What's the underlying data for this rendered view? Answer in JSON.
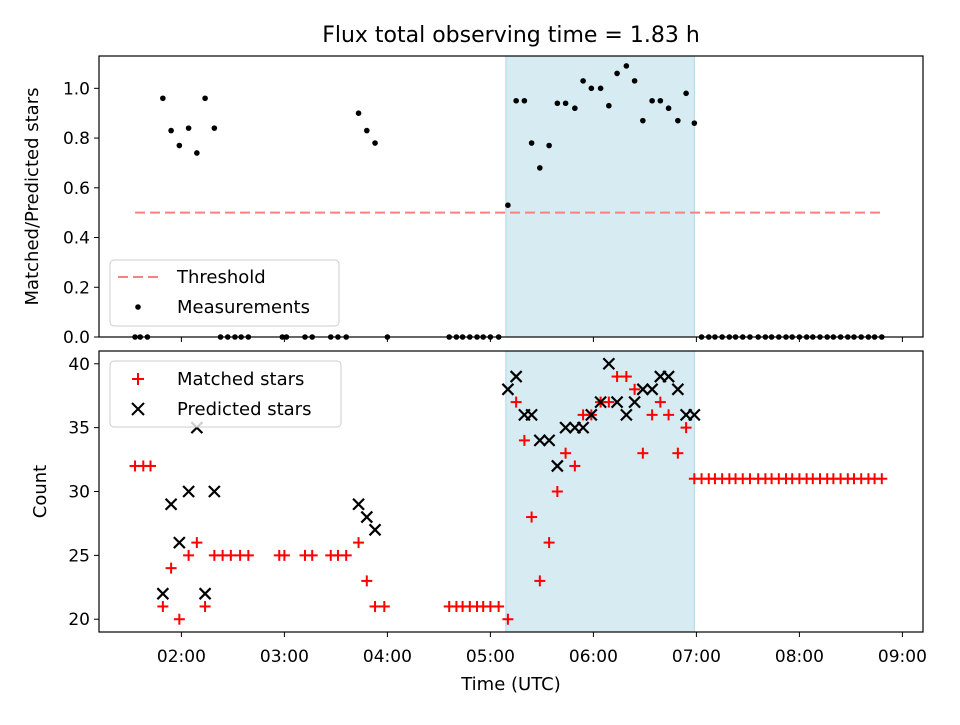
{
  "chart_data": [
    {
      "type": "scatter",
      "title": "Flux total observing time = 1.83 h",
      "ylabel": "Matched/Predicted stars",
      "xlabel": "",
      "xlim": [
        1.2,
        9.2
      ],
      "ylim": [
        0,
        1.13
      ],
      "y_ticks": [
        0.0,
        0.2,
        0.4,
        0.6,
        0.8,
        1.0
      ],
      "shaded_span": [
        5.15,
        6.98
      ],
      "legend_position": "lower-left",
      "threshold": {
        "name": "Threshold",
        "y": 0.5,
        "x_range": [
          1.55,
          8.83
        ],
        "color": "#ff7f7f",
        "style": "dashed"
      },
      "series": [
        {
          "name": "Measurements",
          "marker": "dot",
          "color": "#000000",
          "points": [
            [
              1.55,
              0
            ],
            [
              1.6,
              0
            ],
            [
              1.67,
              0
            ],
            [
              1.82,
              0.96
            ],
            [
              1.9,
              0.83
            ],
            [
              1.98,
              0.77
            ],
            [
              2.07,
              0.84
            ],
            [
              2.15,
              0.74
            ],
            [
              2.23,
              0.96
            ],
            [
              2.32,
              0.84
            ],
            [
              2.38,
              0
            ],
            [
              2.45,
              0
            ],
            [
              2.52,
              0
            ],
            [
              2.58,
              0
            ],
            [
              2.65,
              0
            ],
            [
              2.98,
              0
            ],
            [
              3.02,
              0
            ],
            [
              3.2,
              0
            ],
            [
              3.27,
              0
            ],
            [
              3.45,
              0
            ],
            [
              3.52,
              0
            ],
            [
              3.6,
              0
            ],
            [
              3.72,
              0.9
            ],
            [
              3.8,
              0.83
            ],
            [
              3.88,
              0.78
            ],
            [
              4.0,
              0
            ],
            [
              4.6,
              0
            ],
            [
              4.67,
              0
            ],
            [
              4.73,
              0
            ],
            [
              4.8,
              0
            ],
            [
              4.87,
              0
            ],
            [
              4.93,
              0
            ],
            [
              5.0,
              0
            ],
            [
              5.08,
              0
            ],
            [
              5.17,
              0.53
            ],
            [
              5.25,
              0.95
            ],
            [
              5.33,
              0.95
            ],
            [
              5.4,
              0.78
            ],
            [
              5.48,
              0.68
            ],
            [
              5.57,
              0.77
            ],
            [
              5.65,
              0.94
            ],
            [
              5.73,
              0.94
            ],
            [
              5.82,
              0.92
            ],
            [
              5.9,
              1.03
            ],
            [
              5.98,
              1.0
            ],
            [
              6.07,
              1.0
            ],
            [
              6.15,
              0.93
            ],
            [
              6.23,
              1.06
            ],
            [
              6.32,
              1.09
            ],
            [
              6.4,
              1.03
            ],
            [
              6.48,
              0.87
            ],
            [
              6.57,
              0.95
            ],
            [
              6.65,
              0.95
            ],
            [
              6.73,
              0.92
            ],
            [
              6.82,
              0.87
            ],
            [
              6.9,
              0.98
            ],
            [
              6.98,
              0.86
            ],
            [
              7.05,
              0
            ],
            [
              7.12,
              0
            ],
            [
              7.18,
              0
            ],
            [
              7.25,
              0
            ],
            [
              7.32,
              0
            ],
            [
              7.38,
              0
            ],
            [
              7.45,
              0
            ],
            [
              7.52,
              0
            ],
            [
              7.6,
              0
            ],
            [
              7.67,
              0
            ],
            [
              7.73,
              0
            ],
            [
              7.8,
              0
            ],
            [
              7.87,
              0
            ],
            [
              7.93,
              0
            ],
            [
              8.0,
              0
            ],
            [
              8.07,
              0
            ],
            [
              8.13,
              0
            ],
            [
              8.2,
              0
            ],
            [
              8.27,
              0
            ],
            [
              8.33,
              0
            ],
            [
              8.4,
              0
            ],
            [
              8.47,
              0
            ],
            [
              8.53,
              0
            ],
            [
              8.6,
              0
            ],
            [
              8.67,
              0
            ],
            [
              8.73,
              0
            ],
            [
              8.8,
              0
            ]
          ]
        }
      ]
    },
    {
      "type": "scatter",
      "title": "",
      "ylabel": "Count",
      "xlabel": "Time (UTC)",
      "xlim": [
        1.2,
        9.2
      ],
      "ylim": [
        19,
        41
      ],
      "y_ticks": [
        20,
        25,
        30,
        35,
        40
      ],
      "x_ticks": [
        2,
        3,
        4,
        5,
        6,
        7,
        8,
        9
      ],
      "x_tick_labels": [
        "02:00",
        "03:00",
        "04:00",
        "05:00",
        "06:00",
        "07:00",
        "08:00",
        "09:00"
      ],
      "shaded_span": [
        5.15,
        6.98
      ],
      "legend_position": "upper-left",
      "series": [
        {
          "name": "Matched stars",
          "marker": "plus",
          "color": "#ff0000",
          "points": [
            [
              1.55,
              32
            ],
            [
              1.63,
              32
            ],
            [
              1.7,
              32
            ],
            [
              1.82,
              21
            ],
            [
              1.9,
              24
            ],
            [
              1.98,
              20
            ],
            [
              2.07,
              25
            ],
            [
              2.15,
              26
            ],
            [
              2.23,
              21
            ],
            [
              2.32,
              25
            ],
            [
              2.4,
              25
            ],
            [
              2.48,
              25
            ],
            [
              2.57,
              25
            ],
            [
              2.65,
              25
            ],
            [
              2.95,
              25
            ],
            [
              3.0,
              25
            ],
            [
              3.2,
              25
            ],
            [
              3.27,
              25
            ],
            [
              3.45,
              25
            ],
            [
              3.52,
              25
            ],
            [
              3.6,
              25
            ],
            [
              3.72,
              26
            ],
            [
              3.8,
              23
            ],
            [
              3.88,
              21
            ],
            [
              3.97,
              21
            ],
            [
              4.6,
              21
            ],
            [
              4.67,
              21
            ],
            [
              4.73,
              21
            ],
            [
              4.8,
              21
            ],
            [
              4.87,
              21
            ],
            [
              4.93,
              21
            ],
            [
              5.0,
              21
            ],
            [
              5.08,
              21
            ],
            [
              5.17,
              20
            ],
            [
              5.25,
              37
            ],
            [
              5.33,
              34
            ],
            [
              5.4,
              28
            ],
            [
              5.48,
              23
            ],
            [
              5.57,
              26
            ],
            [
              5.65,
              30
            ],
            [
              5.73,
              33
            ],
            [
              5.82,
              32
            ],
            [
              5.9,
              36
            ],
            [
              5.98,
              36
            ],
            [
              6.07,
              37
            ],
            [
              6.15,
              37
            ],
            [
              6.23,
              39
            ],
            [
              6.32,
              39
            ],
            [
              6.4,
              38
            ],
            [
              6.48,
              33
            ],
            [
              6.57,
              36
            ],
            [
              6.65,
              37
            ],
            [
              6.73,
              36
            ],
            [
              6.82,
              33
            ],
            [
              6.9,
              35
            ],
            [
              6.98,
              31
            ],
            [
              7.05,
              31
            ],
            [
              7.12,
              31
            ],
            [
              7.18,
              31
            ],
            [
              7.25,
              31
            ],
            [
              7.32,
              31
            ],
            [
              7.38,
              31
            ],
            [
              7.45,
              31
            ],
            [
              7.52,
              31
            ],
            [
              7.6,
              31
            ],
            [
              7.67,
              31
            ],
            [
              7.73,
              31
            ],
            [
              7.8,
              31
            ],
            [
              7.87,
              31
            ],
            [
              7.93,
              31
            ],
            [
              8.0,
              31
            ],
            [
              8.07,
              31
            ],
            [
              8.13,
              31
            ],
            [
              8.2,
              31
            ],
            [
              8.27,
              31
            ],
            [
              8.33,
              31
            ],
            [
              8.4,
              31
            ],
            [
              8.47,
              31
            ],
            [
              8.53,
              31
            ],
            [
              8.6,
              31
            ],
            [
              8.67,
              31
            ],
            [
              8.73,
              31
            ],
            [
              8.8,
              31
            ]
          ]
        },
        {
          "name": "Predicted stars",
          "marker": "x",
          "color": "#000000",
          "points": [
            [
              1.82,
              22
            ],
            [
              1.9,
              29
            ],
            [
              1.98,
              26
            ],
            [
              2.07,
              30
            ],
            [
              2.15,
              35
            ],
            [
              2.23,
              22
            ],
            [
              2.32,
              30
            ],
            [
              3.72,
              29
            ],
            [
              3.8,
              28
            ],
            [
              3.88,
              27
            ],
            [
              5.17,
              38
            ],
            [
              5.25,
              39
            ],
            [
              5.33,
              36
            ],
            [
              5.4,
              36
            ],
            [
              5.48,
              34
            ],
            [
              5.57,
              34
            ],
            [
              5.65,
              32
            ],
            [
              5.73,
              35
            ],
            [
              5.82,
              35
            ],
            [
              5.9,
              35
            ],
            [
              5.98,
              36
            ],
            [
              6.07,
              37
            ],
            [
              6.15,
              40
            ],
            [
              6.23,
              37
            ],
            [
              6.32,
              36
            ],
            [
              6.4,
              37
            ],
            [
              6.48,
              38
            ],
            [
              6.57,
              38
            ],
            [
              6.65,
              39
            ],
            [
              6.73,
              39
            ],
            [
              6.82,
              38
            ],
            [
              6.9,
              36
            ],
            [
              6.98,
              36
            ]
          ]
        }
      ]
    }
  ]
}
